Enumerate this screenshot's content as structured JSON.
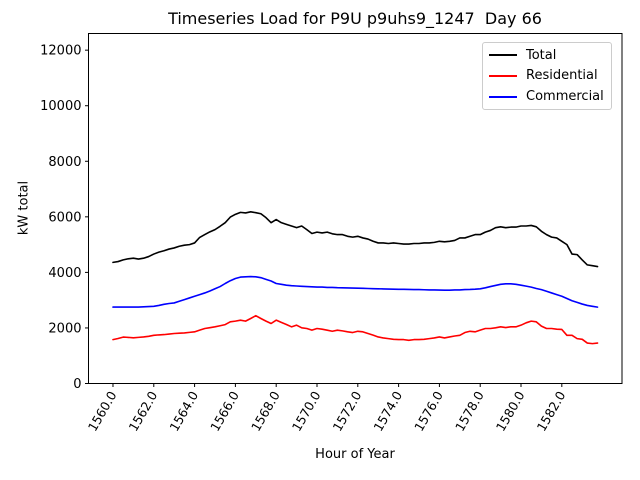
{
  "chart_data": {
    "type": "line",
    "title": "Timeseries Load for P9U p9uhs9_1247  Day 66",
    "xlabel": "Hour of Year",
    "ylabel": "kW total",
    "xlim": [
      1558.8,
      1584.95
    ],
    "ylim": [
      0,
      12600
    ],
    "grid": false,
    "legend_position": "upper right",
    "xticks": {
      "values": [
        1560,
        1562,
        1564,
        1566,
        1568,
        1570,
        1572,
        1574,
        1576,
        1578,
        1580,
        1582
      ],
      "labels": [
        "1560.0",
        "1562.0",
        "1564.0",
        "1566.0",
        "1568.0",
        "1570.0",
        "1572.0",
        "1574.0",
        "1576.0",
        "1578.0",
        "1580.0",
        "1582.0"
      ],
      "rotation_deg": 60
    },
    "yticks": {
      "values": [
        0,
        2000,
        4000,
        6000,
        8000,
        10000,
        12000
      ],
      "labels": [
        "0",
        "2000",
        "4000",
        "6000",
        "8000",
        "10000",
        "12000"
      ]
    },
    "x_start": 1560.0,
    "x_step": 0.25,
    "series": [
      {
        "name": "Total",
        "color": "#000000",
        "values": [
          4360,
          4390,
          4450,
          4490,
          4510,
          4480,
          4510,
          4570,
          4660,
          4730,
          4780,
          4840,
          4880,
          4940,
          4980,
          5000,
          5060,
          5260,
          5360,
          5460,
          5540,
          5660,
          5790,
          5990,
          6090,
          6160,
          6140,
          6180,
          6150,
          6110,
          5970,
          5790,
          5900,
          5790,
          5730,
          5670,
          5610,
          5670,
          5540,
          5400,
          5450,
          5420,
          5450,
          5390,
          5360,
          5360,
          5300,
          5270,
          5300,
          5240,
          5200,
          5120,
          5060,
          5060,
          5040,
          5060,
          5040,
          5020,
          5020,
          5040,
          5040,
          5060,
          5060,
          5080,
          5120,
          5100,
          5120,
          5150,
          5240,
          5240,
          5300,
          5360,
          5360,
          5450,
          5510,
          5610,
          5640,
          5610,
          5630,
          5630,
          5670,
          5670,
          5690,
          5640,
          5480,
          5360,
          5270,
          5240,
          5120,
          5000,
          4660,
          4640,
          4450,
          4270,
          4240,
          4210
        ]
      },
      {
        "name": "Residential",
        "color": "#ff0000",
        "values": [
          1580,
          1620,
          1670,
          1660,
          1645,
          1660,
          1675,
          1700,
          1735,
          1750,
          1760,
          1780,
          1800,
          1810,
          1820,
          1840,
          1860,
          1920,
          1980,
          2010,
          2040,
          2080,
          2120,
          2220,
          2245,
          2280,
          2245,
          2340,
          2440,
          2340,
          2245,
          2160,
          2280,
          2200,
          2125,
          2040,
          2100,
          2005,
          1980,
          1920,
          1980,
          1955,
          1920,
          1880,
          1920,
          1895,
          1860,
          1835,
          1880,
          1860,
          1800,
          1740,
          1675,
          1640,
          1615,
          1590,
          1580,
          1580,
          1555,
          1580,
          1580,
          1590,
          1615,
          1640,
          1675,
          1640,
          1675,
          1710,
          1735,
          1835,
          1880,
          1860,
          1920,
          1980,
          1980,
          2005,
          2040,
          2015,
          2040,
          2040,
          2100,
          2185,
          2245,
          2220,
          2065,
          1980,
          1980,
          1955,
          1945,
          1735,
          1735,
          1615,
          1590,
          1455,
          1435,
          1455
        ]
      },
      {
        "name": "Commercial",
        "color": "#0000ff",
        "values": [
          2750,
          2750,
          2750,
          2750,
          2750,
          2750,
          2760,
          2770,
          2780,
          2810,
          2850,
          2880,
          2900,
          2960,
          3020,
          3080,
          3140,
          3200,
          3260,
          3330,
          3410,
          3490,
          3600,
          3700,
          3780,
          3830,
          3840,
          3850,
          3840,
          3810,
          3750,
          3690,
          3600,
          3570,
          3540,
          3520,
          3510,
          3500,
          3490,
          3480,
          3470,
          3470,
          3460,
          3460,
          3450,
          3445,
          3440,
          3435,
          3430,
          3425,
          3420,
          3415,
          3410,
          3405,
          3400,
          3395,
          3390,
          3390,
          3385,
          3380,
          3380,
          3375,
          3370,
          3370,
          3365,
          3360,
          3360,
          3370,
          3370,
          3380,
          3385,
          3395,
          3410,
          3445,
          3490,
          3530,
          3570,
          3590,
          3590,
          3570,
          3540,
          3505,
          3470,
          3420,
          3380,
          3320,
          3260,
          3200,
          3140,
          3060,
          2980,
          2920,
          2860,
          2810,
          2780,
          2750
        ]
      }
    ]
  }
}
